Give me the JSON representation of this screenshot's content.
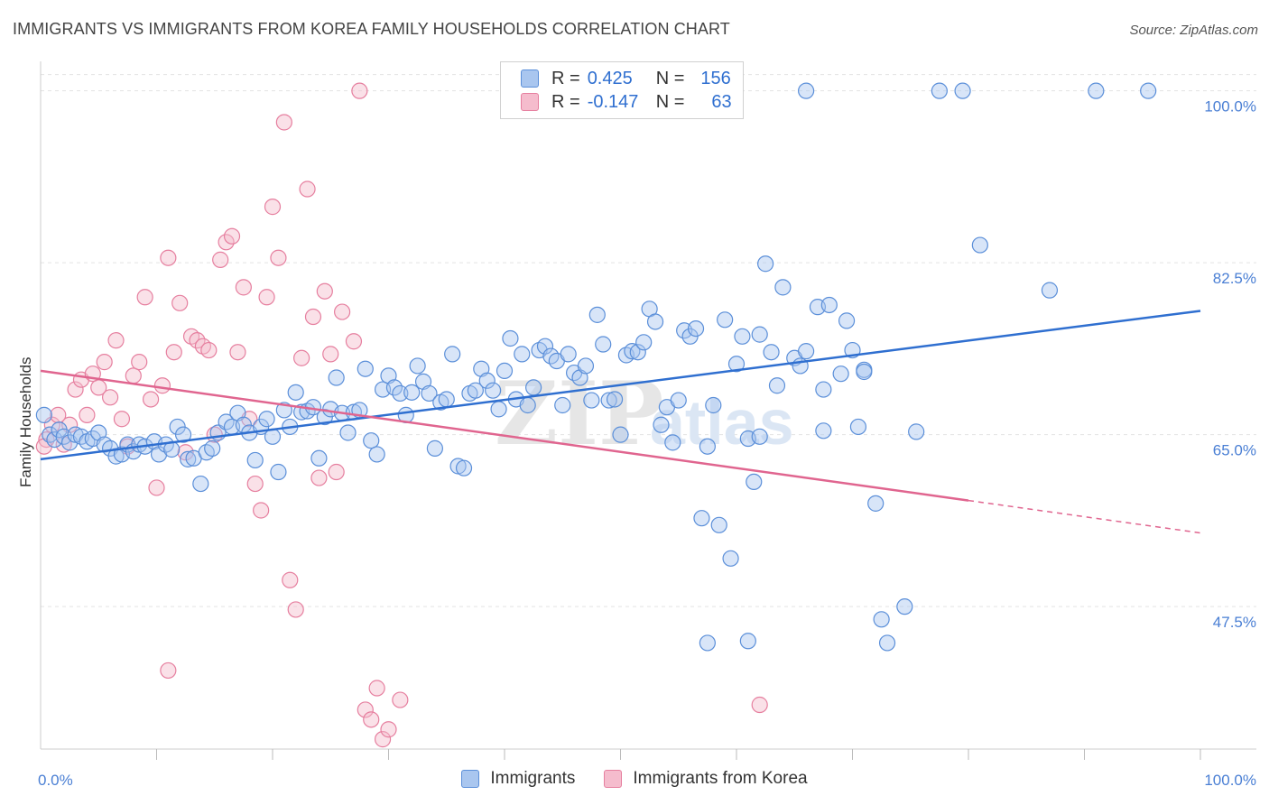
{
  "header": {
    "title": "IMMIGRANTS VS IMMIGRANTS FROM KOREA FAMILY HOUSEHOLDS CORRELATION CHART",
    "source": "Source: ZipAtlas.com"
  },
  "legend_box": {
    "rows": [
      {
        "r_label": "R =",
        "r_value": "0.425",
        "n_label": "N =",
        "n_value": "156"
      },
      {
        "r_label": "R =",
        "r_value": "-0.147",
        "n_label": "N =",
        "n_value": "63"
      }
    ]
  },
  "bottom_legend": {
    "items": [
      {
        "label": "Immigrants"
      },
      {
        "label": "Immigrants from Korea"
      }
    ]
  },
  "watermark": {
    "zip": "ZIP",
    "atlas": "atlas"
  },
  "chart_data": {
    "type": "scatter",
    "ylabel": "Family Households",
    "xlim": [
      0,
      100
    ],
    "ylim": [
      33,
      103
    ],
    "y_ticks": [
      {
        "value": 100,
        "label": "100.0%"
      },
      {
        "value": 82.5,
        "label": "82.5%"
      },
      {
        "value": 65,
        "label": "65.0%"
      },
      {
        "value": 47.5,
        "label": "47.5%"
      }
    ],
    "x_tick_labels": [
      {
        "value": 0,
        "label": "0.0%"
      },
      {
        "value": 100,
        "label": "100.0%"
      }
    ],
    "x_minor_ticks": [
      10,
      20,
      30,
      40,
      50,
      60,
      70,
      80,
      90,
      100
    ],
    "grid": true,
    "legend": "top-center",
    "colors": {
      "immigrants_fill": "#a9c6ef",
      "immigrants_stroke": "#5b8fd9",
      "immigrants_line": "#2f6fd0",
      "korea_fill": "#f5bccd",
      "korea_stroke": "#e67f9f",
      "korea_line": "#e0658f"
    },
    "series": [
      {
        "name": "Immigrants",
        "trend": {
          "x": [
            0,
            100
          ],
          "y": [
            62.5,
            77.6
          ],
          "dashed_from": null
        },
        "points": [
          [
            0.3,
            67
          ],
          [
            0.8,
            65
          ],
          [
            1.2,
            64.5
          ],
          [
            1.6,
            65.5
          ],
          [
            2.0,
            64.8
          ],
          [
            2.5,
            64.2
          ],
          [
            3.0,
            65
          ],
          [
            3.5,
            64.8
          ],
          [
            4.0,
            64.3
          ],
          [
            4.5,
            64.6
          ],
          [
            5.0,
            65.2
          ],
          [
            5.5,
            64.0
          ],
          [
            6.0,
            63.6
          ],
          [
            6.5,
            62.8
          ],
          [
            7.0,
            63.0
          ],
          [
            7.5,
            64.0
          ],
          [
            8.0,
            63.3
          ],
          [
            8.5,
            64.0
          ],
          [
            9.0,
            63.8
          ],
          [
            9.8,
            64.3
          ],
          [
            10.2,
            63.0
          ],
          [
            10.8,
            64.0
          ],
          [
            11.3,
            63.5
          ],
          [
            11.8,
            65.8
          ],
          [
            12.3,
            65.0
          ],
          [
            12.7,
            62.5
          ],
          [
            13.2,
            62.6
          ],
          [
            13.8,
            60.0
          ],
          [
            14.3,
            63.2
          ],
          [
            14.8,
            63.6
          ],
          [
            15.3,
            65.2
          ],
          [
            16.0,
            66.3
          ],
          [
            16.5,
            65.8
          ],
          [
            17.0,
            67.2
          ],
          [
            17.5,
            66.0
          ],
          [
            18.0,
            65.2
          ],
          [
            18.5,
            62.4
          ],
          [
            19.0,
            65.8
          ],
          [
            19.5,
            66.6
          ],
          [
            20.0,
            64.8
          ],
          [
            20.5,
            61.2
          ],
          [
            21.0,
            67.5
          ],
          [
            21.5,
            65.8
          ],
          [
            22.0,
            69.3
          ],
          [
            22.5,
            67.3
          ],
          [
            23.0,
            67.4
          ],
          [
            23.5,
            67.8
          ],
          [
            24.0,
            62.6
          ],
          [
            24.5,
            66.8
          ],
          [
            25.0,
            67.6
          ],
          [
            25.5,
            70.8
          ],
          [
            26.0,
            67.2
          ],
          [
            26.5,
            65.2
          ],
          [
            27.0,
            67.3
          ],
          [
            27.5,
            67.5
          ],
          [
            28.0,
            71.7
          ],
          [
            28.5,
            64.4
          ],
          [
            29.0,
            63.0
          ],
          [
            29.5,
            69.6
          ],
          [
            30.0,
            71.0
          ],
          [
            30.5,
            69.8
          ],
          [
            31.0,
            69.2
          ],
          [
            31.5,
            67.0
          ],
          [
            32.0,
            69.3
          ],
          [
            32.5,
            72.0
          ],
          [
            33.0,
            70.4
          ],
          [
            33.5,
            69.2
          ],
          [
            34.0,
            63.6
          ],
          [
            34.5,
            68.3
          ],
          [
            35.0,
            68.6
          ],
          [
            35.5,
            73.2
          ],
          [
            36.0,
            61.8
          ],
          [
            36.5,
            61.6
          ],
          [
            37.0,
            69.2
          ],
          [
            37.5,
            69.5
          ],
          [
            38.0,
            71.7
          ],
          [
            38.5,
            70.5
          ],
          [
            39.0,
            69.5
          ],
          [
            39.5,
            67.6
          ],
          [
            40.0,
            71.5
          ],
          [
            40.5,
            74.8
          ],
          [
            41.0,
            68.6
          ],
          [
            41.5,
            73.2
          ],
          [
            42.0,
            68.0
          ],
          [
            42.5,
            69.8
          ],
          [
            43.0,
            73.6
          ],
          [
            43.5,
            74.0
          ],
          [
            44.0,
            73.0
          ],
          [
            44.5,
            72.5
          ],
          [
            45.0,
            68.0
          ],
          [
            45.5,
            73.2
          ],
          [
            46.0,
            71.3
          ],
          [
            46.5,
            70.8
          ],
          [
            47.0,
            72.0
          ],
          [
            47.5,
            68.5
          ],
          [
            48.0,
            77.2
          ],
          [
            48.5,
            74.2
          ],
          [
            49.0,
            68.5
          ],
          [
            49.5,
            68.6
          ],
          [
            50.0,
            65.0
          ],
          [
            50.5,
            73.1
          ],
          [
            51.0,
            73.5
          ],
          [
            51.5,
            73.4
          ],
          [
            52.0,
            74.4
          ],
          [
            52.5,
            77.8
          ],
          [
            53.0,
            76.5
          ],
          [
            53.5,
            66.0
          ],
          [
            54.0,
            67.8
          ],
          [
            54.5,
            64.2
          ],
          [
            55.0,
            68.5
          ],
          [
            55.5,
            75.6
          ],
          [
            56.0,
            75.0
          ],
          [
            56.5,
            75.8
          ],
          [
            57.0,
            56.5
          ],
          [
            57.5,
            63.8
          ],
          [
            58.0,
            68.0
          ],
          [
            58.5,
            55.8
          ],
          [
            59.0,
            76.7
          ],
          [
            59.5,
            52.4
          ],
          [
            60.0,
            72.2
          ],
          [
            60.5,
            75.0
          ],
          [
            61.0,
            64.6
          ],
          [
            61.5,
            60.2
          ],
          [
            62.0,
            75.2
          ],
          [
            62.5,
            82.4
          ],
          [
            63.0,
            73.4
          ],
          [
            63.5,
            70.0
          ],
          [
            64.0,
            80.0
          ],
          [
            65.0,
            72.8
          ],
          [
            65.5,
            72.0
          ],
          [
            66.0,
            73.5
          ],
          [
            67.0,
            78.0
          ],
          [
            67.5,
            69.6
          ],
          [
            68.0,
            78.2
          ],
          [
            69.0,
            71.2
          ],
          [
            69.5,
            76.6
          ],
          [
            70.0,
            73.6
          ],
          [
            70.5,
            65.8
          ],
          [
            71.0,
            71.6
          ],
          [
            72.0,
            58.0
          ],
          [
            72.5,
            46.2
          ],
          [
            73.0,
            43.8
          ],
          [
            74.5,
            47.5
          ],
          [
            75.5,
            65.3
          ],
          [
            81.0,
            84.3
          ],
          [
            66.0,
            100
          ],
          [
            77.5,
            100
          ],
          [
            79.5,
            100
          ],
          [
            91.0,
            100
          ],
          [
            95.5,
            100
          ],
          [
            57.5,
            43.8
          ],
          [
            61.0,
            44.0
          ],
          [
            87.0,
            79.7
          ],
          [
            71.0,
            71.4
          ],
          [
            62.0,
            64.8
          ],
          [
            67.5,
            65.4
          ]
        ]
      },
      {
        "name": "Immigrants from Korea",
        "trend": {
          "x": [
            0,
            100
          ],
          "y": [
            71.5,
            55.0
          ],
          "dashed_from": 80
        },
        "points": [
          [
            0.5,
            64.5
          ],
          [
            1.0,
            66.0
          ],
          [
            1.5,
            67.0
          ],
          [
            2.0,
            64.0
          ],
          [
            2.5,
            66.0
          ],
          [
            3.0,
            69.6
          ],
          [
            3.5,
            70.6
          ],
          [
            4.0,
            67.0
          ],
          [
            4.5,
            71.2
          ],
          [
            5.0,
            69.8
          ],
          [
            5.5,
            72.4
          ],
          [
            6.0,
            68.8
          ],
          [
            6.5,
            74.6
          ],
          [
            7.0,
            66.6
          ],
          [
            7.5,
            63.8
          ],
          [
            8.0,
            71.0
          ],
          [
            8.5,
            72.4
          ],
          [
            9.0,
            79.0
          ],
          [
            9.5,
            68.6
          ],
          [
            10.0,
            59.6
          ],
          [
            10.5,
            70.0
          ],
          [
            11.0,
            83.0
          ],
          [
            11.5,
            73.4
          ],
          [
            12.0,
            78.4
          ],
          [
            12.5,
            63.2
          ],
          [
            13.0,
            75.0
          ],
          [
            13.5,
            74.6
          ],
          [
            14.0,
            74.0
          ],
          [
            14.5,
            73.6
          ],
          [
            15.0,
            65.0
          ],
          [
            15.5,
            82.8
          ],
          [
            16.0,
            84.6
          ],
          [
            16.5,
            85.2
          ],
          [
            17.0,
            73.4
          ],
          [
            17.5,
            80.0
          ],
          [
            18.0,
            66.6
          ],
          [
            18.5,
            60.0
          ],
          [
            19.0,
            57.3
          ],
          [
            19.5,
            79.0
          ],
          [
            20.0,
            88.2
          ],
          [
            20.5,
            83.0
          ],
          [
            21.0,
            96.8
          ],
          [
            21.5,
            50.2
          ],
          [
            22.0,
            47.2
          ],
          [
            22.5,
            72.8
          ],
          [
            23.0,
            90.0
          ],
          [
            23.5,
            77.0
          ],
          [
            24.0,
            60.6
          ],
          [
            24.5,
            79.6
          ],
          [
            25.0,
            73.2
          ],
          [
            25.5,
            61.2
          ],
          [
            26.0,
            77.5
          ],
          [
            27.0,
            74.5
          ],
          [
            27.5,
            100
          ],
          [
            28.0,
            37.0
          ],
          [
            28.5,
            36.0
          ],
          [
            29.0,
            39.2
          ],
          [
            29.5,
            34.0
          ],
          [
            30.0,
            35.0
          ],
          [
            31.0,
            38.0
          ],
          [
            11.0,
            41.0
          ],
          [
            62.0,
            37.5
          ],
          [
            0.3,
            63.8
          ]
        ]
      }
    ]
  }
}
